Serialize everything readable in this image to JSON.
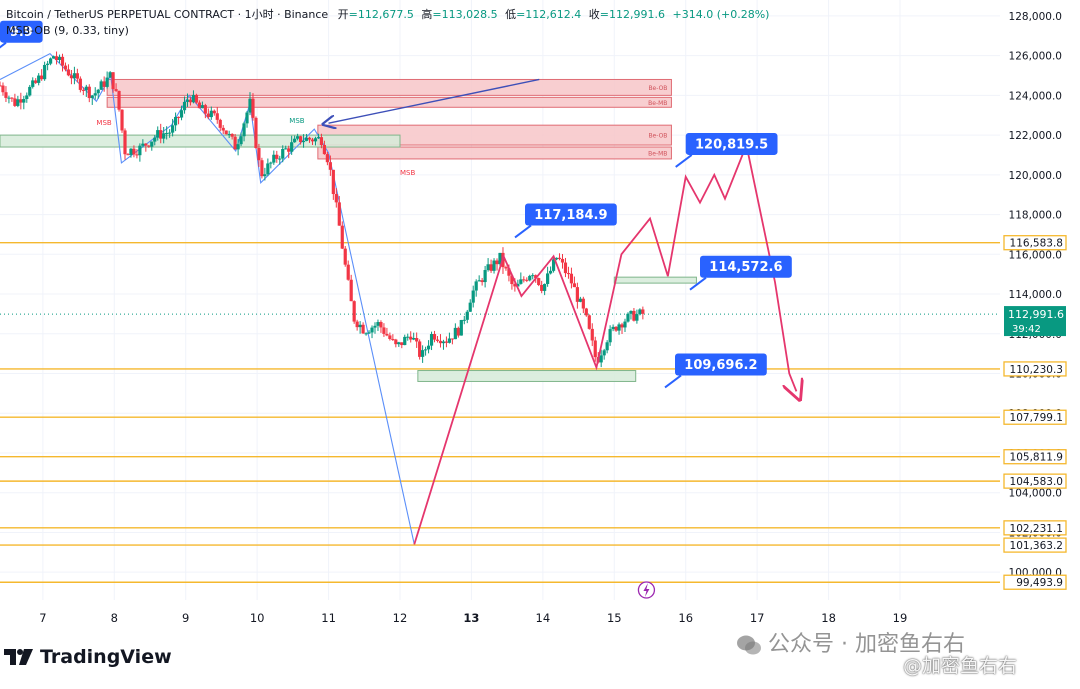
{
  "header": {
    "symbol_line": "Bitcoin / TetherUS PERPETUAL CONTRACT · 1小时 · Binance",
    "open_label": "开",
    "open_value": "=112,677.5",
    "high_label": "高",
    "high_value": "=113,028.5",
    "low_label": "低",
    "low_value": "=112,612.4",
    "close_label": "收",
    "close_value": "=112,991.6",
    "change": "+314.0 (+0.28%)",
    "indicator": "MSB-OB (9, 0.33, tiny)"
  },
  "branding": {
    "logo_text": "TradingView"
  },
  "watermarks": {
    "wechat_account": "公众号 · 加密鱼右右",
    "corner_mark": "@加密鱼右右"
  },
  "colors": {
    "up": "#089981",
    "down": "#f23645",
    "level_line": "#f5b82e",
    "callout": "#2962ff",
    "projection": "#e5366d",
    "zigzag": "#5b8ff9",
    "bear_zone_fill": "#f7c5c8",
    "bear_zone_stroke": "#e06b73",
    "bull_zone_fill": "#d6ebd9",
    "bull_zone_stroke": "#7fb58a"
  },
  "chart_data": {
    "type": "candlestick",
    "timeframe": "1小时",
    "x_ticks": [
      "7",
      "8",
      "9",
      "10",
      "11",
      "12",
      "13",
      "14",
      "15",
      "16",
      "17",
      "18",
      "19"
    ],
    "x_tick_values": [
      7,
      8,
      9,
      10,
      11,
      12,
      13,
      14,
      15,
      16,
      17,
      18,
      19
    ],
    "x_bold_tick": "13",
    "xlim": [
      6.4,
      20.4
    ],
    "y_ticks": [
      "100,000.0",
      "102,000.0",
      "104,000.0",
      "106,000.0",
      "108,000.0",
      "110,000.0",
      "112,000.0",
      "114,000.0",
      "116,000.0",
      "118,000.0",
      "120,000.0",
      "122,000.0",
      "124,000.0",
      "126,000.0",
      "128,000.0"
    ],
    "y_tick_values": [
      100000,
      102000,
      104000,
      106000,
      108000,
      110000,
      112000,
      114000,
      116000,
      118000,
      120000,
      122000,
      124000,
      126000,
      128000
    ],
    "ylim": [
      98600,
      128800
    ],
    "current_price": {
      "value": 112991.6,
      "label": "112,991.6",
      "countdown": "39:42"
    },
    "horizontal_levels": [
      {
        "value": 116583.8,
        "label": "116,583.8"
      },
      {
        "value": 110230.3,
        "label": "110,230.3"
      },
      {
        "value": 107799.1,
        "label": "107,799.1"
      },
      {
        "value": 105811.9,
        "label": "105,811.9"
      },
      {
        "value": 104583.0,
        "label": "104,583.0"
      },
      {
        "value": 102231.1,
        "label": "102,231.1"
      },
      {
        "value": 101363.2,
        "label": "101,363.2"
      },
      {
        "value": 99493.9,
        "label": "99,493.9"
      }
    ],
    "callouts": [
      {
        "label": "120,819.5",
        "x": 16.0,
        "y": 120800
      },
      {
        "label": "117,184.9",
        "x": 13.75,
        "y": 117250
      },
      {
        "label": "114,572.6",
        "x": 16.2,
        "y": 114620
      },
      {
        "label": "109,696.2",
        "x": 15.85,
        "y": 109700
      },
      {
        "label": "9.9",
        "x": 6.4,
        "y": 126450
      }
    ],
    "zones": [
      {
        "kind": "bear",
        "x0": 7.9,
        "x1": 15.8,
        "y0": 124000,
        "y1": 124800,
        "label": "Be-OB"
      },
      {
        "kind": "bear",
        "x0": 7.9,
        "x1": 15.8,
        "y0": 123400,
        "y1": 123900,
        "label": "Be-MB"
      },
      {
        "kind": "bear",
        "x0": 10.85,
        "x1": 15.8,
        "y0": 121500,
        "y1": 122500,
        "label": "Be-OB"
      },
      {
        "kind": "bear",
        "x0": 10.85,
        "x1": 15.8,
        "y0": 120800,
        "y1": 121400,
        "label": "Be-MB"
      },
      {
        "kind": "bull",
        "x0": 6.4,
        "x1": 12.0,
        "y0": 121400,
        "y1": 122000,
        "label": ""
      },
      {
        "kind": "bull",
        "x0": 12.25,
        "x1": 15.3,
        "y0": 109600,
        "y1": 110150,
        "label": ""
      },
      {
        "kind": "bull",
        "x0": 15.0,
        "x1": 16.15,
        "y0": 114550,
        "y1": 114850,
        "label": ""
      }
    ],
    "msb_labels": [
      {
        "text": "MSB",
        "x": 7.75,
        "y": 122500,
        "color": "#f23645"
      },
      {
        "text": "MSB",
        "x": 10.45,
        "y": 122600,
        "color": "#089981"
      },
      {
        "text": "MSB",
        "x": 12.0,
        "y": 120000,
        "color": "#f23645"
      }
    ],
    "zigzag": [
      [
        6.4,
        124800
      ],
      [
        7.1,
        126100
      ],
      [
        7.75,
        123700
      ],
      [
        7.95,
        125000
      ],
      [
        8.1,
        120600
      ],
      [
        8.8,
        122500
      ],
      [
        9.05,
        124000
      ],
      [
        9.7,
        121200
      ],
      [
        9.9,
        123600
      ],
      [
        10.05,
        119600
      ],
      [
        10.8,
        122300
      ],
      [
        11.0,
        121100
      ],
      [
        12.2,
        101400
      ]
    ],
    "projection_path": [
      [
        12.2,
        101400
      ],
      [
        13.45,
        115900
      ],
      [
        13.7,
        113900
      ],
      [
        14.15,
        115900
      ],
      [
        14.75,
        110300
      ],
      [
        15.1,
        116000
      ],
      [
        15.5,
        117800
      ],
      [
        15.75,
        114900
      ],
      [
        16.0,
        119900
      ],
      [
        16.2,
        118600
      ],
      [
        16.4,
        120000
      ],
      [
        16.55,
        118800
      ],
      [
        16.85,
        121500
      ],
      [
        17.25,
        114600
      ],
      [
        17.45,
        110000
      ],
      [
        17.55,
        109100
      ]
    ],
    "arrow_line": {
      "x0": 13.95,
      "y0": 124800,
      "x1": 11.0,
      "y1": 122600
    },
    "candle_path": [
      [
        6.4,
        124500
      ],
      [
        6.6,
        123600
      ],
      [
        6.9,
        124600
      ],
      [
        7.15,
        126000
      ],
      [
        7.45,
        124800
      ],
      [
        7.7,
        124000
      ],
      [
        7.95,
        125000
      ],
      [
        8.05,
        123700
      ],
      [
        8.15,
        121200
      ],
      [
        8.35,
        121300
      ],
      [
        8.6,
        122000
      ],
      [
        8.8,
        122200
      ],
      [
        9.05,
        124000
      ],
      [
        9.2,
        123300
      ],
      [
        9.45,
        122800
      ],
      [
        9.7,
        121400
      ],
      [
        9.9,
        123600
      ],
      [
        10.05,
        120000
      ],
      [
        10.3,
        121000
      ],
      [
        10.6,
        121800
      ],
      [
        10.9,
        121800
      ],
      [
        11.0,
        120700
      ],
      [
        11.15,
        117400
      ],
      [
        11.25,
        115000
      ],
      [
        11.35,
        112800
      ],
      [
        11.5,
        112200
      ],
      [
        11.7,
        112500
      ],
      [
        11.95,
        111300
      ],
      [
        12.15,
        112000
      ],
      [
        12.3,
        110800
      ],
      [
        12.45,
        112000
      ],
      [
        12.65,
        111700
      ],
      [
        12.85,
        112300
      ],
      [
        13.0,
        114000
      ],
      [
        13.2,
        115100
      ],
      [
        13.4,
        115800
      ],
      [
        13.6,
        114200
      ],
      [
        13.85,
        115200
      ],
      [
        14.0,
        114300
      ],
      [
        14.2,
        115900
      ],
      [
        14.4,
        114600
      ],
      [
        14.6,
        112800
      ],
      [
        14.75,
        110600
      ],
      [
        14.9,
        111800
      ],
      [
        15.05,
        112500
      ],
      [
        15.25,
        112900
      ],
      [
        15.4,
        113000
      ]
    ]
  }
}
